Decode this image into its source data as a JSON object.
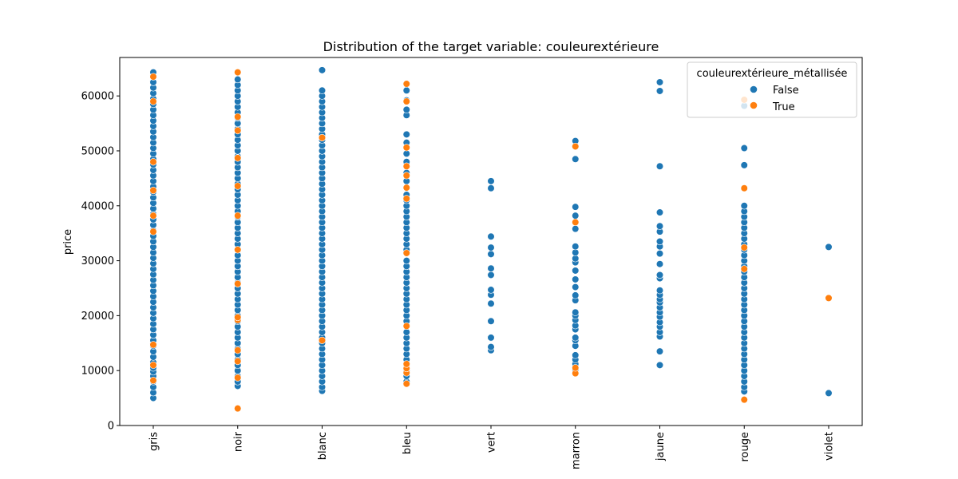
{
  "chart_data": {
    "type": "scatter",
    "title": "Distribution of the target variable: couleurextérieure",
    "xlabel": "",
    "ylabel": "price",
    "categories": [
      "gris",
      "noir",
      "blanc",
      "bleu",
      "vert",
      "marron",
      "jaune",
      "rouge",
      "violet"
    ],
    "ylim": [
      0,
      67000
    ],
    "yticks": [
      0,
      10000,
      20000,
      30000,
      40000,
      50000,
      60000
    ],
    "grid": false,
    "legend": {
      "title": "couleurextérieure_métallisée",
      "placement": "top-right",
      "entries": [
        {
          "label": "False",
          "color": "#1f77b4"
        },
        {
          "label": "True",
          "color": "#ff7f0e"
        }
      ]
    },
    "series": [
      {
        "name": "False",
        "color": "#1f77b4",
        "points": {
          "gris": [
            5000,
            6000,
            7000,
            8000,
            9000,
            9800,
            10500,
            11500,
            12500,
            13500,
            14500,
            15500,
            16500,
            17500,
            18500,
            19500,
            20500,
            21500,
            22500,
            23500,
            24500,
            25500,
            26500,
            27500,
            28500,
            29500,
            30500,
            31500,
            32500,
            33500,
            34500,
            35500,
            36500,
            37500,
            38500,
            39500,
            40500,
            41500,
            42500,
            43500,
            44500,
            45500,
            46500,
            47500,
            48500,
            49500,
            50500,
            51500,
            52500,
            53500,
            54500,
            55500,
            56500,
            57500,
            58500,
            59500,
            60500,
            61500,
            62500,
            63500,
            64300
          ],
          "noir": [
            7200,
            8000,
            9000,
            10000,
            11000,
            12000,
            13000,
            14000,
            15000,
            16000,
            17000,
            18000,
            19000,
            20000,
            21000,
            22000,
            23000,
            24000,
            25000,
            26000,
            27000,
            28000,
            29000,
            30000,
            31000,
            32000,
            33000,
            34000,
            35000,
            36000,
            37000,
            38000,
            39000,
            40000,
            41000,
            42000,
            43000,
            44000,
            45000,
            46000,
            47000,
            48000,
            49000,
            50000,
            51000,
            52000,
            53000,
            54000,
            55000,
            56000,
            57000,
            58000,
            59000,
            60000,
            61000,
            62000,
            63000
          ],
          "blanc": [
            6300,
            7000,
            8000,
            9000,
            10000,
            11000,
            12000,
            13000,
            14000,
            15000,
            16000,
            17000,
            18000,
            19000,
            20000,
            21000,
            22000,
            23000,
            24000,
            25000,
            26000,
            27000,
            28000,
            29000,
            30000,
            31000,
            32000,
            33000,
            34000,
            35000,
            36000,
            37000,
            38000,
            39000,
            40000,
            41000,
            42000,
            43000,
            44000,
            45000,
            46000,
            47000,
            48000,
            49000,
            50000,
            51000,
            52000,
            53000,
            54000,
            55000,
            56000,
            57000,
            58000,
            59000,
            60000,
            61000,
            64700
          ],
          "bleu": [
            8000,
            9000,
            10000,
            11000,
            12000,
            13000,
            14000,
            15000,
            16000,
            17000,
            19000,
            20000,
            21000,
            22000,
            23000,
            24000,
            25000,
            26000,
            27000,
            28000,
            29000,
            30000,
            32000,
            33000,
            34000,
            35000,
            36000,
            37000,
            38000,
            39000,
            40000,
            41000,
            42000,
            44500,
            46000,
            48000,
            49500,
            51500,
            53000,
            56500,
            57500,
            59200,
            61000
          ],
          "vert": [
            13700,
            14300,
            16000,
            19000,
            22200,
            23800,
            24700,
            27400,
            28600,
            31200,
            32400,
            34400,
            43200,
            44500
          ],
          "marron": [
            9500,
            10200,
            11200,
            12000,
            12800,
            14500,
            15500,
            16000,
            17500,
            18200,
            19200,
            20000,
            20600,
            22800,
            23700,
            25200,
            26600,
            28200,
            29700,
            30400,
            31500,
            32600,
            35800,
            38200,
            39800,
            48500,
            51800
          ],
          "jaune": [
            11000,
            13500,
            16200,
            17000,
            18000,
            18800,
            19800,
            20600,
            21500,
            22400,
            23000,
            23800,
            24600,
            26800,
            27400,
            29400,
            31300,
            32600,
            33500,
            35300,
            36300,
            38800,
            47200,
            60900,
            62500
          ],
          "rouge": [
            6200,
            7000,
            8000,
            9000,
            10000,
            11000,
            12000,
            13000,
            14000,
            15000,
            16000,
            17000,
            18000,
            19000,
            20000,
            21000,
            22000,
            23000,
            24000,
            25000,
            26000,
            27000,
            28000,
            29000,
            30000,
            31000,
            32000,
            33000,
            34000,
            35000,
            36000,
            37000,
            38000,
            39000,
            40000,
            47400,
            50500,
            58200
          ],
          "violet": [
            5900,
            32500
          ]
        }
      },
      {
        "name": "True",
        "color": "#ff7f0e",
        "points": {
          "gris": [
            8200,
            11000,
            14700,
            35300,
            38200,
            42800,
            48000,
            59000,
            63500
          ],
          "noir": [
            3100,
            8700,
            11700,
            13700,
            19200,
            19700,
            25800,
            32000,
            38200,
            43600,
            48700,
            53700,
            56200,
            64300
          ],
          "blanc": [
            15500,
            52400
          ],
          "bleu": [
            7600,
            9600,
            10400,
            11200,
            18100,
            31400,
            41300,
            43300,
            45500,
            47200,
            50600,
            59000,
            62200
          ],
          "vert": [],
          "marron": [
            9500,
            10500,
            37000,
            50800
          ],
          "jaune": [],
          "rouge": [
            4700,
            28500,
            32400,
            43200,
            59300
          ],
          "violet": [
            23200
          ]
        }
      }
    ]
  }
}
